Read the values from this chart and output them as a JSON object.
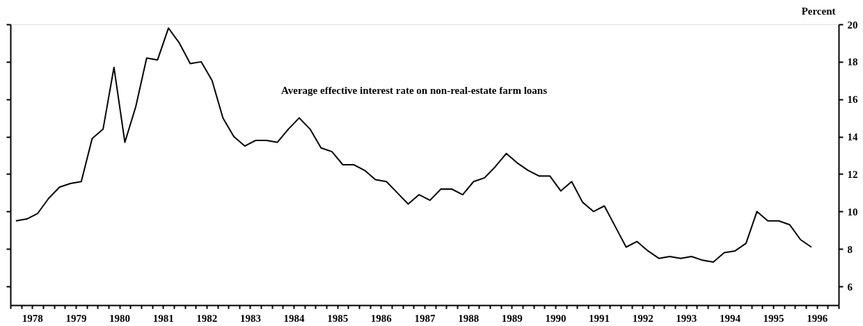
{
  "chart_data": {
    "type": "line",
    "ylabel": "Percent",
    "annotations": [
      "Average effective interest rate on non-real-estate farm loans"
    ],
    "x": [
      1978.125,
      1978.375,
      1978.625,
      1978.875,
      1979.125,
      1979.375,
      1979.625,
      1979.875,
      1980.125,
      1980.375,
      1980.625,
      1980.875,
      1981.125,
      1981.375,
      1981.625,
      1981.875,
      1982.125,
      1982.375,
      1982.625,
      1982.875,
      1983.125,
      1983.375,
      1983.625,
      1983.875,
      1984.125,
      1984.375,
      1984.625,
      1984.875,
      1985.125,
      1985.375,
      1985.625,
      1985.875,
      1986.125,
      1986.375,
      1986.625,
      1986.875,
      1987.125,
      1987.375,
      1987.625,
      1987.875,
      1988.125,
      1988.375,
      1988.625,
      1988.875,
      1989.125,
      1989.375,
      1989.625,
      1989.875,
      1990.125,
      1990.375,
      1990.625,
      1990.875,
      1991.125,
      1991.375,
      1991.625,
      1991.875,
      1992.125,
      1992.375,
      1992.625,
      1992.875,
      1993.125,
      1993.375,
      1993.625,
      1993.875,
      1994.125,
      1994.375,
      1994.625,
      1994.875,
      1995.125,
      1995.375,
      1995.625,
      1995.875,
      1996.125,
      1996.375
    ],
    "series": [
      {
        "color": "#000000",
        "values": [
          9.5,
          9.6,
          9.9,
          10.7,
          11.3,
          11.5,
          11.6,
          13.9,
          14.4,
          17.7,
          13.7,
          15.6,
          18.2,
          18.1,
          19.8,
          19.0,
          17.9,
          18.0,
          17.0,
          15.0,
          14.0,
          13.5,
          13.8,
          13.8,
          13.7,
          14.4,
          15.0,
          14.4,
          13.4,
          13.2,
          12.5,
          12.5,
          12.2,
          11.7,
          11.6,
          11.0,
          10.4,
          10.9,
          10.6,
          11.2,
          11.2,
          10.9,
          11.6,
          11.8,
          12.4,
          13.1,
          12.6,
          12.2,
          11.9,
          11.9,
          11.1,
          11.6,
          10.5,
          10.0,
          10.3,
          9.2,
          8.1,
          8.4,
          7.9,
          7.5,
          7.6,
          7.5,
          7.6,
          7.4,
          7.3,
          7.8,
          7.9,
          8.3,
          10.0,
          9.5,
          9.5,
          9.3,
          8.5,
          8.1
        ]
      }
    ],
    "xlim": [
      1978,
      1997
    ],
    "xticks": [
      {
        "value": 1978,
        "label": null
      },
      {
        "value": 1978.25,
        "label": null
      },
      {
        "value": 1978.5,
        "label": "1978"
      },
      {
        "value": 1978.75,
        "label": null
      },
      {
        "value": 1979,
        "label": null
      },
      {
        "value": 1979.25,
        "label": null
      },
      {
        "value": 1979.5,
        "label": "1979"
      },
      {
        "value": 1979.75,
        "label": null
      },
      {
        "value": 1980,
        "label": null
      },
      {
        "value": 1980.25,
        "label": null
      },
      {
        "value": 1980.5,
        "label": "1980"
      },
      {
        "value": 1980.75,
        "label": null
      },
      {
        "value": 1981,
        "label": null
      },
      {
        "value": 1981.25,
        "label": null
      },
      {
        "value": 1981.5,
        "label": "1981"
      },
      {
        "value": 1981.75,
        "label": null
      },
      {
        "value": 1982,
        "label": null
      },
      {
        "value": 1982.25,
        "label": null
      },
      {
        "value": 1982.5,
        "label": "1982"
      },
      {
        "value": 1982.75,
        "label": null
      },
      {
        "value": 1983,
        "label": null
      },
      {
        "value": 1983.25,
        "label": null
      },
      {
        "value": 1983.5,
        "label": "1983"
      },
      {
        "value": 1983.75,
        "label": null
      },
      {
        "value": 1984,
        "label": null
      },
      {
        "value": 1984.25,
        "label": null
      },
      {
        "value": 1984.5,
        "label": "1984"
      },
      {
        "value": 1984.75,
        "label": null
      },
      {
        "value": 1985,
        "label": null
      },
      {
        "value": 1985.25,
        "label": null
      },
      {
        "value": 1985.5,
        "label": "1985"
      },
      {
        "value": 1985.75,
        "label": null
      },
      {
        "value": 1986,
        "label": null
      },
      {
        "value": 1986.25,
        "label": null
      },
      {
        "value": 1986.5,
        "label": "1986"
      },
      {
        "value": 1986.75,
        "label": null
      },
      {
        "value": 1987,
        "label": null
      },
      {
        "value": 1987.25,
        "label": null
      },
      {
        "value": 1987.5,
        "label": "1987"
      },
      {
        "value": 1987.75,
        "label": null
      },
      {
        "value": 1988,
        "label": null
      },
      {
        "value": 1988.25,
        "label": null
      },
      {
        "value": 1988.5,
        "label": "1988"
      },
      {
        "value": 1988.75,
        "label": null
      },
      {
        "value": 1989,
        "label": null
      },
      {
        "value": 1989.25,
        "label": null
      },
      {
        "value": 1989.5,
        "label": "1989"
      },
      {
        "value": 1989.75,
        "label": null
      },
      {
        "value": 1990,
        "label": null
      },
      {
        "value": 1990.25,
        "label": null
      },
      {
        "value": 1990.5,
        "label": "1990"
      },
      {
        "value": 1990.75,
        "label": null
      },
      {
        "value": 1991,
        "label": null
      },
      {
        "value": 1991.25,
        "label": null
      },
      {
        "value": 1991.5,
        "label": "1991"
      },
      {
        "value": 1991.75,
        "label": null
      },
      {
        "value": 1992,
        "label": null
      },
      {
        "value": 1992.25,
        "label": null
      },
      {
        "value": 1992.5,
        "label": "1992"
      },
      {
        "value": 1992.75,
        "label": null
      },
      {
        "value": 1993,
        "label": null
      },
      {
        "value": 1993.25,
        "label": null
      },
      {
        "value": 1993.5,
        "label": "1993"
      },
      {
        "value": 1993.75,
        "label": null
      },
      {
        "value": 1994,
        "label": null
      },
      {
        "value": 1994.25,
        "label": null
      },
      {
        "value": 1994.5,
        "label": "1994"
      },
      {
        "value": 1994.75,
        "label": null
      },
      {
        "value": 1995,
        "label": null
      },
      {
        "value": 1995.25,
        "label": null
      },
      {
        "value": 1995.5,
        "label": "1995"
      },
      {
        "value": 1995.75,
        "label": null
      },
      {
        "value": 1996,
        "label": null
      },
      {
        "value": 1996.25,
        "label": null
      },
      {
        "value": 1996.5,
        "label": "1996"
      },
      {
        "value": 1996.75,
        "label": null
      },
      {
        "value": 1997,
        "label": null
      }
    ],
    "ylim": [
      5,
      20
    ],
    "yticks": [
      6,
      8,
      10,
      12,
      14,
      16,
      18,
      20
    ],
    "grid": false,
    "marker": "none",
    "line_style": "solid"
  }
}
